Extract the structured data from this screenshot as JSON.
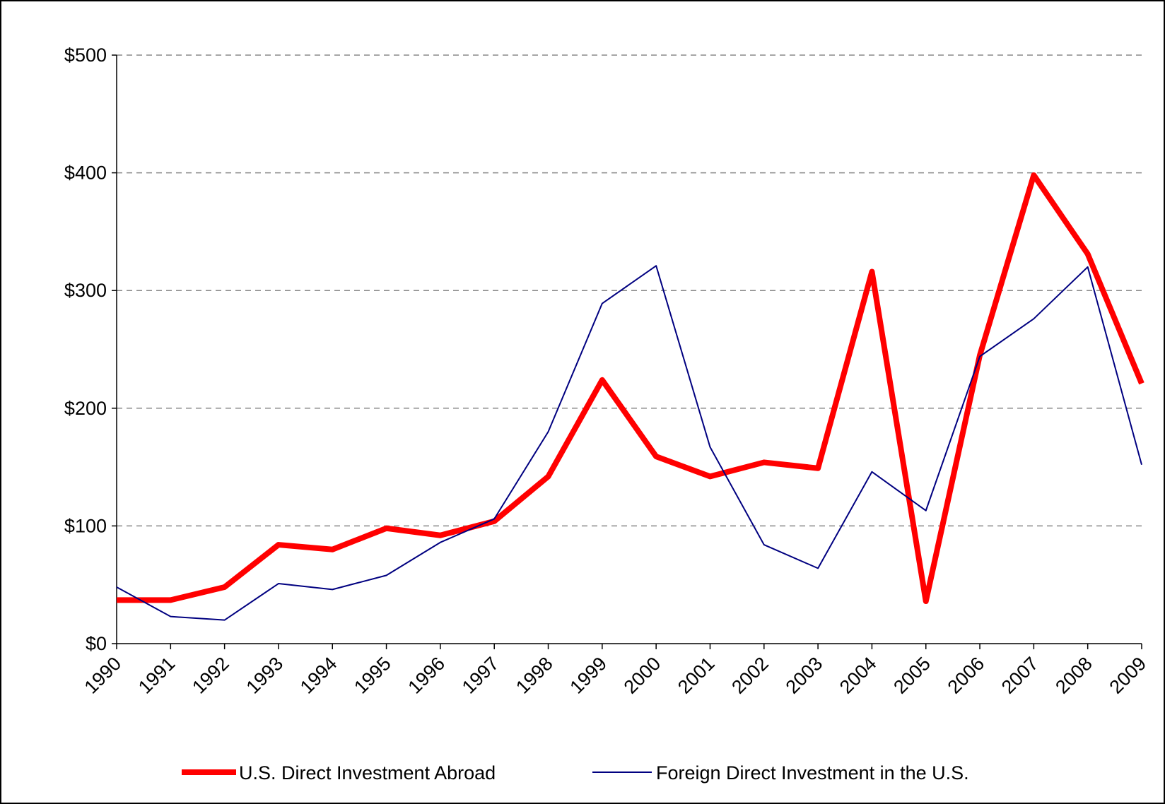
{
  "chart_data": {
    "type": "line",
    "categories": [
      "1990",
      "1991",
      "1992",
      "1993",
      "1994",
      "1995",
      "1996",
      "1997",
      "1998",
      "1999",
      "2000",
      "2001",
      "2002",
      "2003",
      "2004",
      "2005",
      "2006",
      "2007",
      "2008",
      "2009"
    ],
    "series": [
      {
        "name": "U.S. Direct Investment Abroad",
        "color": "#ff0000",
        "width": 8,
        "values": [
          37,
          37,
          48,
          84,
          80,
          98,
          92,
          104,
          142,
          224,
          159,
          142,
          154,
          149,
          316,
          36,
          245,
          398,
          331,
          221
        ]
      },
      {
        "name": "Foreign Direct Investment in the U.S.",
        "color": "#000080",
        "width": 2,
        "values": [
          48,
          23,
          20,
          51,
          46,
          58,
          86,
          106,
          180,
          289,
          321,
          167,
          84,
          64,
          146,
          113,
          244,
          276,
          320,
          152
        ]
      }
    ],
    "ylim": [
      0,
      500
    ],
    "yticks": [
      {
        "value": 0,
        "label": "$0"
      },
      {
        "value": 100,
        "label": "$100"
      },
      {
        "value": 200,
        "label": "$200"
      },
      {
        "value": 300,
        "label": "$300"
      },
      {
        "value": 400,
        "label": "$400"
      },
      {
        "value": 500,
        "label": "$500"
      }
    ],
    "grid": true,
    "legend": "bottom"
  }
}
